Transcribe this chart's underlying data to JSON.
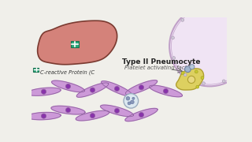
{
  "bg_color": "#f0efea",
  "liver_color": "#d4827a",
  "liver_outline": "#7a3a30",
  "liver_green_box": "#2aaa7a",
  "crp_label": "C-reactive Protein (C",
  "crp_box_color": "#2aaa7a",
  "type2_label": "Type II Pneumocyte",
  "platelet_label": "Platelet activating factor",
  "cell_fill": "#cc99d8",
  "cell_outline": "#9060a0",
  "cell_nucleus": "#8833aa",
  "pneumocyte_fill": "#f0e4f4",
  "pneumocyte_outline": "#b090b8",
  "pneumocyte_yellow": "#ddd060",
  "pneumocyte_yellow_outline": "#b0a030",
  "pneumocyte_border": "#c0a0c8"
}
